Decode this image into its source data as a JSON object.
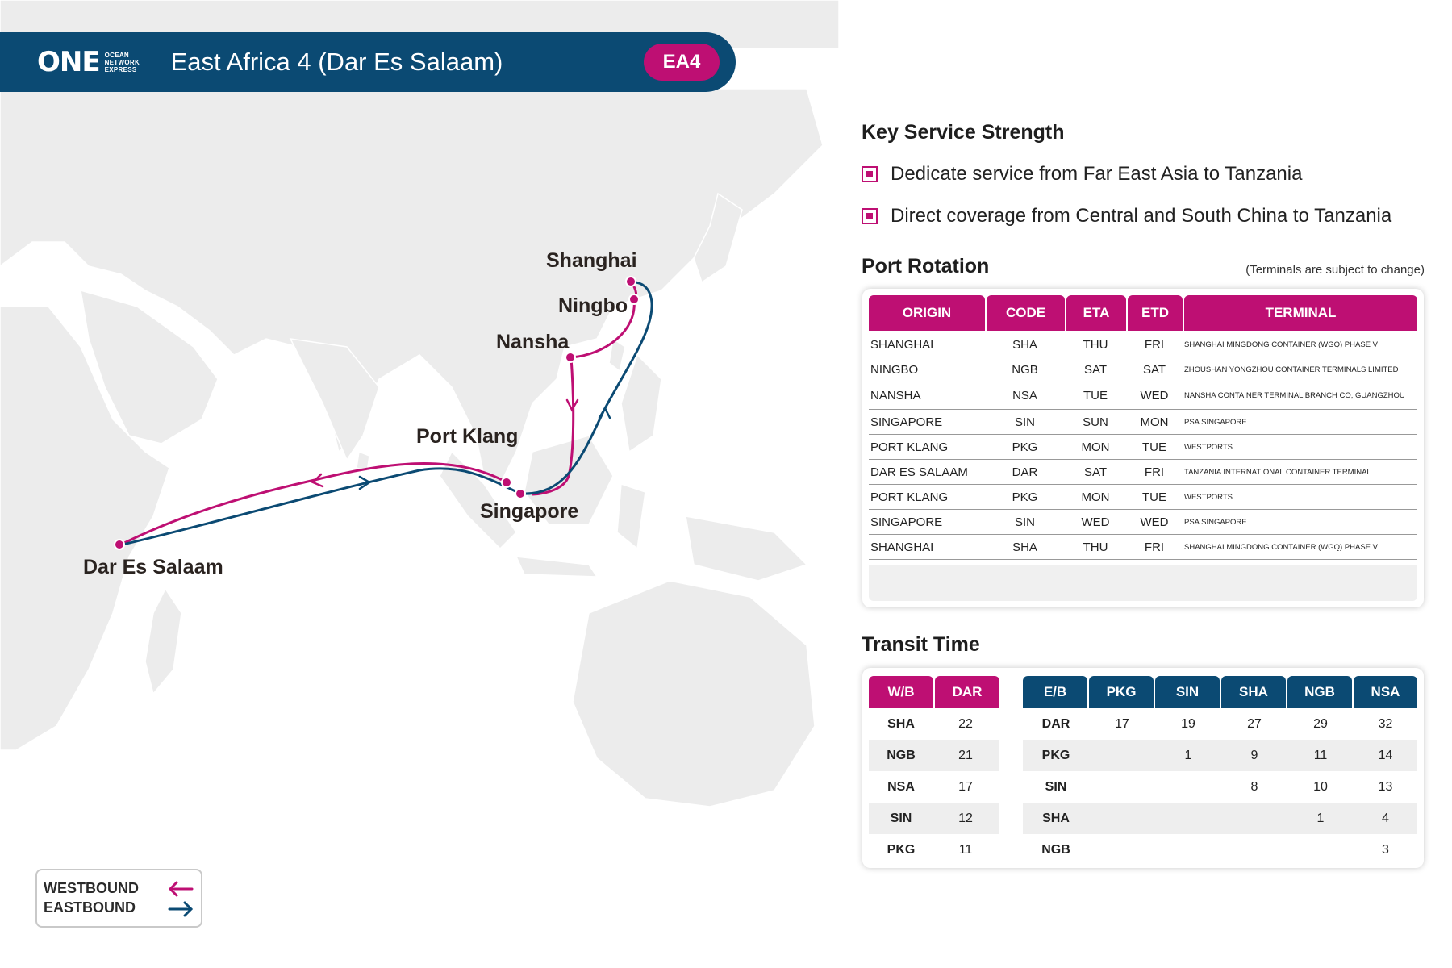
{
  "header": {
    "logo_text": "ONE",
    "logo_sub": [
      "OCEAN",
      "NETWORK",
      "EXPRESS"
    ],
    "title": "East Africa 4 (Dar Es Salaam)",
    "badge": "EA4"
  },
  "map": {
    "ports": {
      "shanghai": "Shanghai",
      "ningbo": "Ningbo",
      "nansha": "Nansha",
      "port_klang": "Port Klang",
      "singapore": "Singapore",
      "dar_es_salaam": "Dar Es Salaam"
    },
    "westbound_color": "#be0f73",
    "eastbound_color": "#0b4a73"
  },
  "legend": {
    "westbound": "WESTBOUND",
    "eastbound": "EASTBOUND"
  },
  "key_service": {
    "title": "Key Service Strength",
    "items": [
      "Dedicate service from Far East Asia to Tanzania",
      "Direct coverage from Central and South China to Tanzania"
    ]
  },
  "port_rotation": {
    "title": "Port Rotation",
    "note": "(Terminals are subject to change)",
    "headers": [
      "ORIGIN",
      "CODE",
      "ETA",
      "ETD",
      "TERMINAL"
    ],
    "rows": [
      [
        "SHANGHAI",
        "SHA",
        "THU",
        "FRI",
        "SHANGHAI MINGDONG CONTAINER (WGQ) PHASE V"
      ],
      [
        "NINGBO",
        "NGB",
        "SAT",
        "SAT",
        "ZHOUSHAN YONGZHOU CONTAINER TERMINALS LIMITED"
      ],
      [
        "NANSHA",
        "NSA",
        "TUE",
        "WED",
        "NANSHA CONTAINER TERMINAL BRANCH CO, GUANGZHOU"
      ],
      [
        "SINGAPORE",
        "SIN",
        "SUN",
        "MON",
        "PSA SINGAPORE"
      ],
      [
        "PORT KLANG",
        "PKG",
        "MON",
        "TUE",
        "WESTPORTS"
      ],
      [
        "DAR ES SALAAM",
        "DAR",
        "SAT",
        "FRI",
        "TANZANIA INTERNATIONAL CONTAINER TERMINAL"
      ],
      [
        "PORT KLANG",
        "PKG",
        "MON",
        "TUE",
        "WESTPORTS"
      ],
      [
        "SINGAPORE",
        "SIN",
        "WED",
        "WED",
        "PSA SINGAPORE"
      ],
      [
        "SHANGHAI",
        "SHA",
        "THU",
        "FRI",
        "SHANGHAI MINGDONG CONTAINER (WGQ) PHASE V"
      ]
    ]
  },
  "transit_time": {
    "title": "Transit Time",
    "westbound": {
      "headers": [
        "W/B",
        "DAR"
      ],
      "rows": [
        [
          "SHA",
          "22"
        ],
        [
          "NGB",
          "21"
        ],
        [
          "NSA",
          "17"
        ],
        [
          "SIN",
          "12"
        ],
        [
          "PKG",
          "11"
        ]
      ]
    },
    "eastbound": {
      "headers": [
        "E/B",
        "PKG",
        "SIN",
        "SHA",
        "NGB",
        "NSA"
      ],
      "rows": [
        [
          "DAR",
          "17",
          "19",
          "27",
          "29",
          "32"
        ],
        [
          "PKG",
          "",
          "1",
          "9",
          "11",
          "14"
        ],
        [
          "SIN",
          "",
          "",
          "8",
          "10",
          "13"
        ],
        [
          "SHA",
          "",
          "",
          "",
          "1",
          "4"
        ],
        [
          "NGB",
          "",
          "",
          "",
          "",
          "3"
        ]
      ]
    }
  },
  "colors": {
    "magenta": "#be0f73",
    "navy": "#0b4a73"
  }
}
